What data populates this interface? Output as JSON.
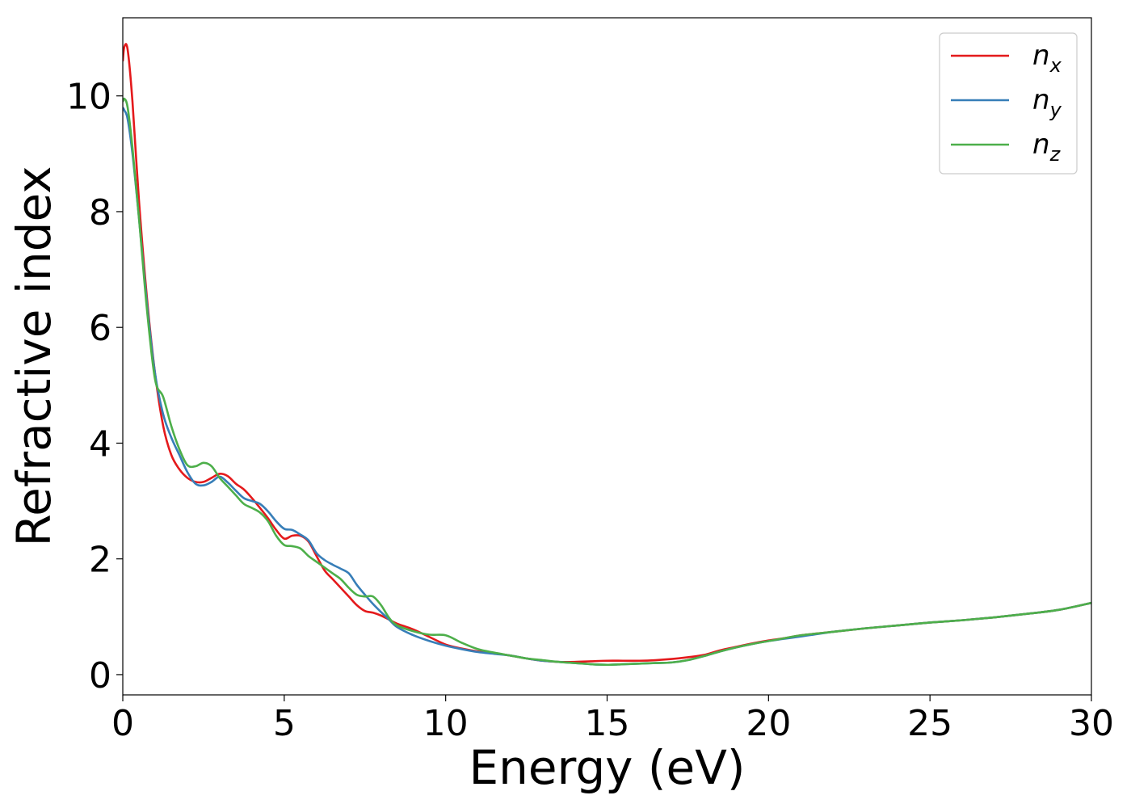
{
  "chart_data": {
    "type": "line",
    "title": "",
    "xlabel": "Energy (eV)",
    "ylabel": "Refractive index",
    "xlim": [
      0,
      30
    ],
    "ylim": [
      -0.35,
      11.35
    ],
    "xticks": [
      0,
      5,
      10,
      15,
      20,
      25,
      30
    ],
    "yticks": [
      0,
      2,
      4,
      6,
      8,
      10
    ],
    "grid": false,
    "legend_position": "top-right",
    "series": [
      {
        "name": "n",
        "subscript": "x",
        "color": "#e41a1c",
        "points": [
          [
            0,
            10.6
          ],
          [
            0.05,
            10.85
          ],
          [
            0.15,
            10.8
          ],
          [
            0.3,
            9.9
          ],
          [
            0.5,
            8.2
          ],
          [
            0.75,
            6.5
          ],
          [
            1,
            5.2
          ],
          [
            1.25,
            4.3
          ],
          [
            1.5,
            3.8
          ],
          [
            1.75,
            3.55
          ],
          [
            2,
            3.4
          ],
          [
            2.25,
            3.33
          ],
          [
            2.5,
            3.33
          ],
          [
            2.75,
            3.4
          ],
          [
            3,
            3.47
          ],
          [
            3.25,
            3.43
          ],
          [
            3.5,
            3.3
          ],
          [
            3.75,
            3.2
          ],
          [
            4,
            3.05
          ],
          [
            4.25,
            2.88
          ],
          [
            4.5,
            2.7
          ],
          [
            4.75,
            2.5
          ],
          [
            5,
            2.35
          ],
          [
            5.25,
            2.4
          ],
          [
            5.5,
            2.4
          ],
          [
            5.75,
            2.3
          ],
          [
            6,
            2.05
          ],
          [
            6.25,
            1.8
          ],
          [
            6.5,
            1.65
          ],
          [
            6.75,
            1.5
          ],
          [
            7,
            1.35
          ],
          [
            7.25,
            1.2
          ],
          [
            7.5,
            1.1
          ],
          [
            7.75,
            1.07
          ],
          [
            8,
            1.02
          ],
          [
            8.25,
            0.95
          ],
          [
            8.5,
            0.88
          ],
          [
            9,
            0.78
          ],
          [
            9.5,
            0.65
          ],
          [
            10,
            0.52
          ],
          [
            10.5,
            0.45
          ],
          [
            11,
            0.4
          ],
          [
            11.5,
            0.37
          ],
          [
            12,
            0.33
          ],
          [
            12.5,
            0.28
          ],
          [
            13,
            0.24
          ],
          [
            13.5,
            0.22
          ],
          [
            14,
            0.22
          ],
          [
            14.5,
            0.23
          ],
          [
            15,
            0.24
          ],
          [
            15.5,
            0.24
          ],
          [
            16,
            0.24
          ],
          [
            16.5,
            0.25
          ],
          [
            17,
            0.27
          ],
          [
            17.5,
            0.3
          ],
          [
            18,
            0.34
          ],
          [
            18.5,
            0.42
          ],
          [
            19,
            0.48
          ],
          [
            19.5,
            0.54
          ],
          [
            20,
            0.59
          ],
          [
            20.5,
            0.63
          ],
          [
            21,
            0.68
          ],
          [
            22,
            0.74
          ],
          [
            23,
            0.8
          ],
          [
            24,
            0.85
          ],
          [
            25,
            0.9
          ],
          [
            26,
            0.94
          ],
          [
            27,
            0.99
          ],
          [
            28,
            1.05
          ],
          [
            29,
            1.12
          ],
          [
            30,
            1.24
          ]
        ]
      },
      {
        "name": "n",
        "subscript": "y",
        "color": "#377eb8",
        "points": [
          [
            0,
            9.8
          ],
          [
            0.05,
            9.75
          ],
          [
            0.15,
            9.6
          ],
          [
            0.3,
            9.0
          ],
          [
            0.5,
            7.9
          ],
          [
            0.75,
            6.4
          ],
          [
            1,
            5.2
          ],
          [
            1.25,
            4.5
          ],
          [
            1.5,
            4.1
          ],
          [
            1.75,
            3.8
          ],
          [
            2,
            3.5
          ],
          [
            2.25,
            3.3
          ],
          [
            2.5,
            3.27
          ],
          [
            2.75,
            3.33
          ],
          [
            3,
            3.42
          ],
          [
            3.25,
            3.32
          ],
          [
            3.5,
            3.18
          ],
          [
            3.75,
            3.05
          ],
          [
            4,
            3.0
          ],
          [
            4.25,
            2.95
          ],
          [
            4.5,
            2.82
          ],
          [
            4.75,
            2.65
          ],
          [
            5,
            2.52
          ],
          [
            5.25,
            2.5
          ],
          [
            5.5,
            2.42
          ],
          [
            5.75,
            2.32
          ],
          [
            6,
            2.1
          ],
          [
            6.25,
            1.98
          ],
          [
            6.5,
            1.9
          ],
          [
            6.75,
            1.83
          ],
          [
            7,
            1.75
          ],
          [
            7.25,
            1.55
          ],
          [
            7.5,
            1.38
          ],
          [
            7.75,
            1.22
          ],
          [
            8,
            1.08
          ],
          [
            8.25,
            0.95
          ],
          [
            8.5,
            0.82
          ],
          [
            9,
            0.68
          ],
          [
            9.5,
            0.58
          ],
          [
            10,
            0.5
          ],
          [
            10.5,
            0.44
          ],
          [
            11,
            0.39
          ],
          [
            11.5,
            0.36
          ],
          [
            12,
            0.33
          ],
          [
            12.5,
            0.28
          ],
          [
            13,
            0.24
          ],
          [
            13.5,
            0.22
          ],
          [
            14,
            0.2
          ],
          [
            14.5,
            0.18
          ],
          [
            15,
            0.17
          ],
          [
            15.5,
            0.18
          ],
          [
            16,
            0.19
          ],
          [
            16.5,
            0.2
          ],
          [
            17,
            0.21
          ],
          [
            17.5,
            0.25
          ],
          [
            18,
            0.32
          ],
          [
            18.5,
            0.4
          ],
          [
            19,
            0.47
          ],
          [
            19.5,
            0.53
          ],
          [
            20,
            0.58
          ],
          [
            20.5,
            0.62
          ],
          [
            21,
            0.66
          ],
          [
            22,
            0.74
          ],
          [
            23,
            0.8
          ],
          [
            24,
            0.85
          ],
          [
            25,
            0.9
          ],
          [
            26,
            0.94
          ],
          [
            27,
            0.99
          ],
          [
            28,
            1.05
          ],
          [
            29,
            1.12
          ],
          [
            30,
            1.24
          ]
        ]
      },
      {
        "name": "n",
        "subscript": "z",
        "color": "#4daf4a",
        "points": [
          [
            0,
            9.9
          ],
          [
            0.05,
            9.95
          ],
          [
            0.15,
            9.8
          ],
          [
            0.3,
            9.1
          ],
          [
            0.5,
            7.9
          ],
          [
            0.75,
            6.3
          ],
          [
            1,
            5.1
          ],
          [
            1.25,
            4.8
          ],
          [
            1.5,
            4.3
          ],
          [
            1.75,
            3.9
          ],
          [
            2,
            3.62
          ],
          [
            2.25,
            3.6
          ],
          [
            2.5,
            3.66
          ],
          [
            2.75,
            3.6
          ],
          [
            3,
            3.4
          ],
          [
            3.25,
            3.25
          ],
          [
            3.5,
            3.1
          ],
          [
            3.75,
            2.95
          ],
          [
            4,
            2.88
          ],
          [
            4.25,
            2.8
          ],
          [
            4.5,
            2.65
          ],
          [
            4.75,
            2.4
          ],
          [
            5,
            2.24
          ],
          [
            5.25,
            2.22
          ],
          [
            5.5,
            2.18
          ],
          [
            5.75,
            2.05
          ],
          [
            6,
            1.95
          ],
          [
            6.25,
            1.85
          ],
          [
            6.5,
            1.75
          ],
          [
            6.75,
            1.65
          ],
          [
            7,
            1.5
          ],
          [
            7.25,
            1.38
          ],
          [
            7.5,
            1.35
          ],
          [
            7.75,
            1.35
          ],
          [
            8,
            1.2
          ],
          [
            8.25,
            0.98
          ],
          [
            8.5,
            0.85
          ],
          [
            9,
            0.75
          ],
          [
            9.5,
            0.69
          ],
          [
            10,
            0.68
          ],
          [
            10.5,
            0.55
          ],
          [
            11,
            0.44
          ],
          [
            11.5,
            0.38
          ],
          [
            12,
            0.33
          ],
          [
            12.5,
            0.28
          ],
          [
            13,
            0.25
          ],
          [
            13.5,
            0.22
          ],
          [
            14,
            0.2
          ],
          [
            14.5,
            0.18
          ],
          [
            15,
            0.17
          ],
          [
            15.5,
            0.18
          ],
          [
            16,
            0.19
          ],
          [
            16.5,
            0.2
          ],
          [
            17,
            0.21
          ],
          [
            17.5,
            0.25
          ],
          [
            18,
            0.32
          ],
          [
            18.5,
            0.4
          ],
          [
            19,
            0.47
          ],
          [
            19.5,
            0.53
          ],
          [
            20,
            0.58
          ],
          [
            20.5,
            0.63
          ],
          [
            21,
            0.68
          ],
          [
            22,
            0.74
          ],
          [
            23,
            0.8
          ],
          [
            24,
            0.85
          ],
          [
            25,
            0.9
          ],
          [
            26,
            0.94
          ],
          [
            27,
            0.99
          ],
          [
            28,
            1.05
          ],
          [
            29,
            1.12
          ],
          [
            30,
            1.24
          ]
        ]
      }
    ]
  }
}
